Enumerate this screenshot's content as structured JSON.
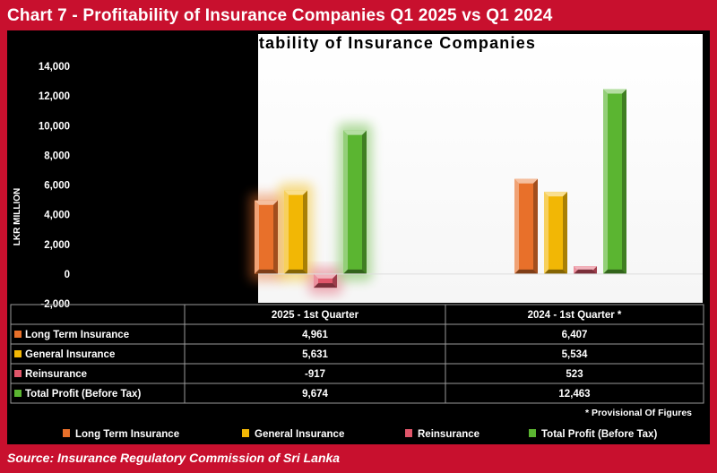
{
  "header": {
    "title": "Chart 7 - Profitability of Insurance Companies Q1 2025 vs Q1 2024"
  },
  "footer": {
    "source": "Source: Insurance Regulatory Commission of Sri Lanka"
  },
  "footnote": "* Provisional Of Figures",
  "colors": {
    "frame": "#c8102e",
    "Long Term Insurance": "#e8702a",
    "General Insurance": "#f2b705",
    "Reinsurance": "#e0566a",
    "Total Profit (Before Tax)": "#5bb531"
  },
  "chart_data": {
    "type": "bar",
    "title": "Profitability of Insurance Companies",
    "ylabel": "LKR MILLION",
    "xlabel": "",
    "ylim": [
      -2000,
      14000
    ],
    "yticks": [
      "-2,000",
      "0",
      "2,000",
      "4,000",
      "6,000",
      "8,000",
      "10,000",
      "12,000",
      "14,000"
    ],
    "categories": [
      "2025 - 1st Quarter",
      "2024 - 1st Quarter *"
    ],
    "series": [
      {
        "name": "Long Term Insurance",
        "values": [
          4961,
          6407
        ],
        "labels": [
          "4,961",
          "6,407"
        ]
      },
      {
        "name": "General Insurance",
        "values": [
          5631,
          5534
        ],
        "labels": [
          "5,631",
          "5,534"
        ]
      },
      {
        "name": "Reinsurance",
        "values": [
          -917,
          523
        ],
        "labels": [
          "-917",
          "523"
        ]
      },
      {
        "name": "Total Profit (Before Tax)",
        "values": [
          9674,
          12463
        ],
        "labels": [
          "9,674",
          "12,463"
        ]
      }
    ],
    "legend": "bottom",
    "grid": false
  }
}
